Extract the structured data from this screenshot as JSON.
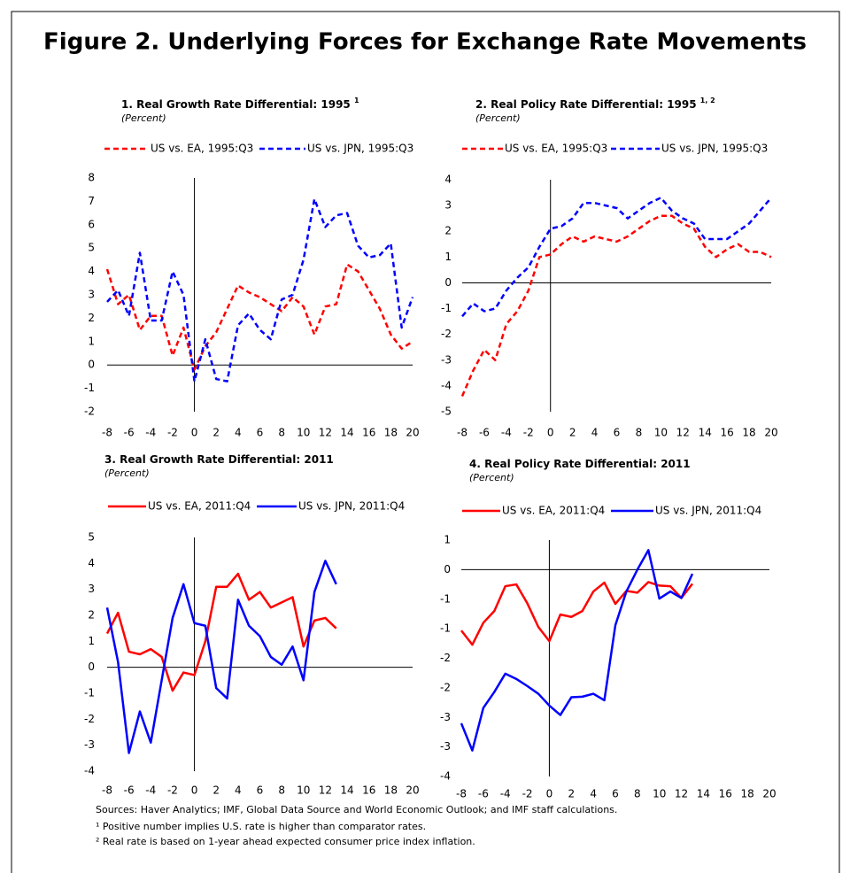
{
  "title": "Figure 2. Underlying Forces for Exchange Rate Movements",
  "chart_data": [
    {
      "type": "line",
      "title": "1.  Real Growth Rate Differential: 1995",
      "title_sup": "1",
      "subtitle": "(Percent)",
      "dashed": true,
      "x": [
        -8,
        -7,
        -6,
        -5,
        -4,
        -3,
        -2,
        -1,
        0,
        1,
        2,
        3,
        4,
        5,
        6,
        7,
        8,
        9,
        10,
        11,
        12,
        13,
        14,
        15,
        16,
        17,
        18,
        19,
        20
      ],
      "xlim": [
        -8,
        20
      ],
      "xticks": [
        -8,
        -6,
        -4,
        -2,
        0,
        2,
        4,
        6,
        8,
        10,
        12,
        14,
        16,
        18,
        20
      ],
      "ylim": [
        -2,
        8
      ],
      "yticks": [
        8,
        7,
        6,
        5,
        4,
        3,
        2,
        1,
        0,
        -1,
        -2
      ],
      "series": [
        {
          "name": "US vs. EA, 1995:Q3",
          "color": "#ff0000",
          "values": [
            4.1,
            2.6,
            3.0,
            1.5,
            2.1,
            2.1,
            0.4,
            1.6,
            -0.2,
            0.8,
            1.4,
            2.4,
            3.4,
            3.1,
            2.9,
            2.6,
            2.3,
            2.9,
            2.5,
            1.3,
            2.5,
            2.6,
            4.3,
            4.0,
            3.2,
            2.4,
            1.3,
            0.7,
            1.0
          ]
        },
        {
          "name": "US vs. JPN, 1995:Q3",
          "color": "#0000ff",
          "values": [
            2.7,
            3.2,
            2.1,
            4.8,
            1.9,
            1.9,
            4.0,
            3.0,
            -0.7,
            1.1,
            -0.6,
            -0.7,
            1.7,
            2.2,
            1.5,
            1.1,
            2.8,
            3.0,
            4.5,
            7.1,
            5.9,
            6.4,
            6.5,
            5.1,
            4.6,
            4.7,
            5.2,
            1.6,
            2.9
          ]
        }
      ]
    },
    {
      "type": "line",
      "title": "2.  Real Policy Rate Differential: 1995",
      "title_sup": "1, 2",
      "subtitle": "(Percent)",
      "dashed": true,
      "x": [
        -8,
        -7,
        -6,
        -5,
        -4,
        -3,
        -2,
        -1,
        0,
        1,
        2,
        3,
        4,
        5,
        6,
        7,
        8,
        9,
        10,
        11,
        12,
        13,
        14,
        15,
        16,
        17,
        18,
        19,
        20
      ],
      "xlim": [
        -8,
        20
      ],
      "xticks": [
        -8,
        -6,
        -4,
        -2,
        0,
        2,
        4,
        6,
        8,
        10,
        12,
        14,
        16,
        18,
        20
      ],
      "ylim": [
        -5,
        4
      ],
      "yticks": [
        4,
        3,
        2,
        1,
        0,
        -1,
        -2,
        -3,
        -4,
        -5
      ],
      "series": [
        {
          "name": "US vs. EA, 1995:Q3",
          "color": "#ff0000",
          "values": [
            -4.4,
            -3.4,
            -2.6,
            -3.0,
            -1.6,
            -1.1,
            -0.3,
            1.0,
            1.1,
            1.5,
            1.8,
            1.6,
            1.8,
            1.7,
            1.6,
            1.8,
            2.1,
            2.4,
            2.6,
            2.6,
            2.3,
            2.1,
            1.4,
            1.0,
            1.3,
            1.5,
            1.2,
            1.2,
            1.0
          ]
        },
        {
          "name": "US vs. JPN, 1995:Q3",
          "color": "#0000ff",
          "values": [
            -1.3,
            -0.8,
            -1.1,
            -1.0,
            -0.3,
            0.2,
            0.6,
            1.4,
            2.1,
            2.2,
            2.5,
            3.1,
            3.1,
            3.0,
            2.9,
            2.5,
            2.8,
            3.1,
            3.3,
            2.8,
            2.5,
            2.3,
            1.7,
            1.7,
            1.7,
            2.0,
            2.3,
            2.8,
            3.3
          ]
        }
      ]
    },
    {
      "type": "line",
      "title": "3.  Real Growth Rate Differential: 2011",
      "subtitle": "(Percent)",
      "dashed": false,
      "x": [
        -8,
        -7,
        -6,
        -5,
        -4,
        -3,
        -2,
        -1,
        0,
        1,
        2,
        3,
        4,
        5,
        6,
        7,
        8,
        9,
        10,
        11,
        12,
        13
      ],
      "xlim": [
        -8,
        20
      ],
      "xticks": [
        -8,
        -6,
        -4,
        -2,
        0,
        2,
        4,
        6,
        8,
        10,
        12,
        14,
        16,
        18,
        20
      ],
      "ylim": [
        -4,
        5
      ],
      "yticks": [
        5,
        4,
        3,
        2,
        1,
        0,
        -1,
        -2,
        -3,
        -4
      ],
      "series": [
        {
          "name": "US vs. EA, 2011:Q4",
          "color": "#ff0000",
          "values": [
            1.3,
            2.1,
            0.6,
            0.5,
            0.7,
            0.4,
            -0.9,
            -0.2,
            -0.3,
            1.0,
            3.1,
            3.1,
            3.6,
            2.6,
            2.9,
            2.3,
            2.5,
            2.7,
            0.8,
            1.8,
            1.9,
            1.5
          ]
        },
        {
          "name": "US vs. JPN, 2011:Q4",
          "color": "#0000ff",
          "values": [
            2.3,
            0.2,
            -3.3,
            -1.7,
            -2.9,
            -0.5,
            1.9,
            3.2,
            1.7,
            1.6,
            -0.8,
            -1.2,
            2.6,
            1.6,
            1.2,
            0.4,
            0.1,
            0.8,
            -0.5,
            2.9,
            4.1,
            3.2
          ]
        }
      ]
    },
    {
      "type": "line",
      "title": "4.  Real Policy Rate  Differential: 2011",
      "subtitle": "(Percent)",
      "dashed": false,
      "x": [
        -8,
        -7,
        -6,
        -5,
        -4,
        -3,
        -2,
        -1,
        0,
        1,
        2,
        3,
        4,
        5,
        6,
        7,
        8,
        9,
        10,
        11,
        12,
        13
      ],
      "xlim": [
        -8,
        20
      ],
      "xticks": [
        -8,
        -6,
        -4,
        -2,
        0,
        2,
        4,
        6,
        8,
        10,
        12,
        14,
        16,
        18,
        20
      ],
      "ylim": [
        -3.5,
        0.5
      ],
      "yticks": [
        {
          "value": 0.5,
          "label": "1"
        },
        0,
        {
          "value": -0.5,
          "label": "-1"
        },
        {
          "value": -1,
          "label": "-1"
        },
        {
          "value": -1.5,
          "label": "-2"
        },
        {
          "value": -2,
          "label": "-2"
        },
        {
          "value": -2.5,
          "label": "-3"
        },
        {
          "value": -3,
          "label": "-3"
        },
        {
          "value": -3.5,
          "label": "-4"
        }
      ],
      "series": [
        {
          "name": "US vs. EA, 2011:Q4",
          "color": "#ff0000",
          "values": [
            -1.03,
            -1.27,
            -0.9,
            -0.7,
            -0.28,
            -0.25,
            -0.57,
            -0.97,
            -1.21,
            -0.76,
            -0.8,
            -0.7,
            -0.37,
            -0.22,
            -0.58,
            -0.36,
            -0.39,
            -0.21,
            -0.27,
            -0.28,
            -0.48,
            -0.24
          ]
        },
        {
          "name": "US vs. JPN, 2011:Q4",
          "color": "#0000ff",
          "values": [
            -2.6,
            -3.06,
            -2.34,
            -2.07,
            -1.76,
            -1.85,
            -1.97,
            -2.1,
            -2.3,
            -2.46,
            -2.16,
            -2.15,
            -2.1,
            -2.21,
            -0.94,
            -0.37,
            0.0,
            0.33,
            -0.49,
            -0.37,
            -0.48,
            -0.07
          ]
        }
      ]
    }
  ],
  "notes": [
    "Sources: Haver Analytics; IMF, Global Data Source and World Economic Outlook; and IMF staff calculations.",
    "¹ Positive number implies U.S. rate is higher than comparator rates.",
    "² Real rate is based on 1-year ahead expected consumer price index inflation."
  ]
}
